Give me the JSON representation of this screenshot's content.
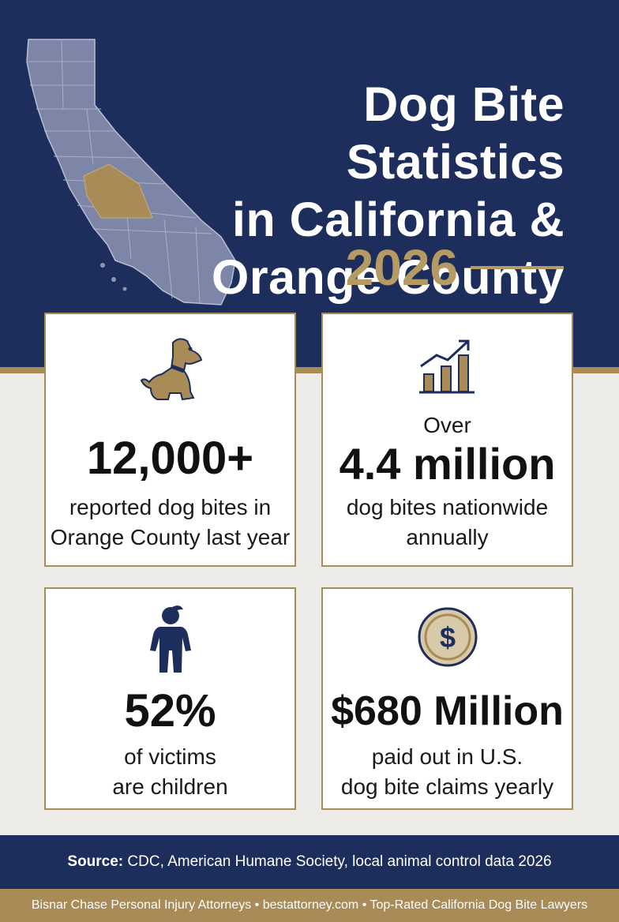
{
  "header": {
    "title_lines": [
      "Dog Bite Statistics",
      "in California &",
      "Orange County"
    ],
    "year": "2026"
  },
  "cards": [
    {
      "icon": "dog-icon",
      "pre": "",
      "value": "12,000+",
      "desc_lines": [
        "reported dog bites in",
        "Orange County last year"
      ]
    },
    {
      "icon": "bar-chart-icon",
      "pre": "Over",
      "value": "4.4 million",
      "desc_lines": [
        "dog bites nationwide",
        "annually"
      ]
    },
    {
      "icon": "child-icon",
      "pre": "",
      "value": "52%",
      "desc_lines": [
        "of victims",
        "are children"
      ]
    },
    {
      "icon": "dollar-coin-icon",
      "pre": "",
      "value": "$680 Million",
      "desc_lines": [
        "paid out in U.S.",
        "dog bite claims yearly"
      ]
    }
  ],
  "footer": {
    "source_label": "Source:",
    "source_text": " CDC, American Humane Society, local animal control data 2026"
  },
  "bottom_bar": {
    "text": "Bisnar Chase Personal Injury Attorneys • bestattorney.com • Top-Rated California Dog Bite Lawyers"
  },
  "colors": {
    "navy": "#1E2E5C",
    "gold": "#A88B57",
    "background": "#ECEBE7"
  }
}
